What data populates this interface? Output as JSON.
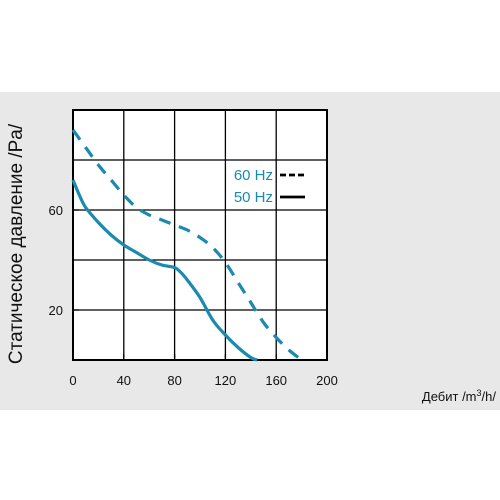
{
  "chart_data": {
    "type": "line",
    "xlabel_prefix": "Дебит /m",
    "xlabel_sup": "3",
    "xlabel_suffix": "/h/",
    "ylabel": "Статическое давление /Pa/",
    "x_ticks": [
      "0",
      "40",
      "80",
      "120",
      "160",
      "200"
    ],
    "y_ticks": [
      "20",
      "60"
    ],
    "xlim": [
      0,
      200
    ],
    "ylim": [
      0,
      100
    ],
    "grid": true,
    "legend_position": "right",
    "series_color": "#1a8ab0",
    "series": [
      {
        "name": "60 Hz",
        "style": "dashed",
        "x": [
          0,
          10,
          20,
          30,
          40,
          50,
          60,
          70,
          80,
          90,
          100,
          110,
          120,
          130,
          140,
          150,
          160,
          170,
          180
        ],
        "y": [
          92,
          85,
          78,
          72,
          66,
          61,
          58,
          56,
          54,
          52,
          49,
          45,
          39,
          31,
          23,
          15,
          9,
          4,
          0
        ]
      },
      {
        "name": "50 Hz",
        "style": "solid",
        "x": [
          0,
          5,
          10,
          20,
          30,
          40,
          50,
          60,
          70,
          80,
          85,
          90,
          100,
          110,
          120,
          130,
          140,
          145
        ],
        "y": [
          72,
          66,
          61,
          55,
          50,
          46,
          43,
          40,
          38,
          37,
          35,
          32,
          25,
          16,
          10,
          5,
          1,
          0
        ]
      }
    ]
  }
}
